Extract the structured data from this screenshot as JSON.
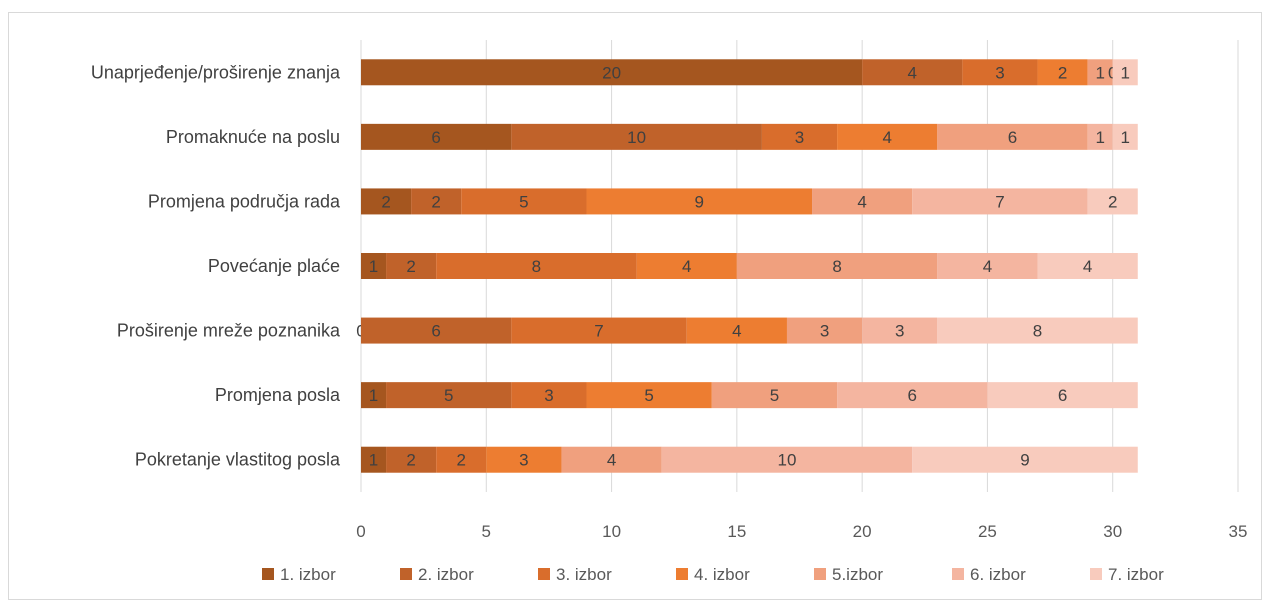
{
  "chart_data": {
    "type": "bar",
    "orientation": "horizontal",
    "stacked": true,
    "categories": [
      "Unaprjeđenje/proširenje znanja",
      "Promaknuće na poslu",
      "Promjena područja rada",
      "Povećanje plaće",
      "Proširenje mreže poznanika",
      "Promjena posla",
      "Pokretanje vlastitog posla"
    ],
    "series": [
      {
        "name": "1. izbor",
        "color": "#a5561f",
        "values": [
          20,
          6,
          2,
          1,
          0,
          1,
          1
        ]
      },
      {
        "name": "2. izbor",
        "color": "#c0622a",
        "values": [
          4,
          10,
          2,
          2,
          6,
          5,
          2
        ]
      },
      {
        "name": "3. izbor",
        "color": "#d96d2c",
        "values": [
          3,
          3,
          5,
          8,
          7,
          3,
          2
        ]
      },
      {
        "name": "4. izbor",
        "color": "#ed7d31",
        "values": [
          2,
          4,
          9,
          4,
          4,
          5,
          3
        ]
      },
      {
        "name": "5.izbor",
        "color": "#f0a07e",
        "values": [
          1,
          6,
          4,
          8,
          3,
          5,
          4
        ]
      },
      {
        "name": "6. izbor",
        "color": "#f4b5a0",
        "values": [
          0,
          1,
          7,
          4,
          3,
          6,
          10
        ]
      },
      {
        "name": "7. izbor",
        "color": "#f8cbbd",
        "values": [
          1,
          1,
          2,
          4,
          8,
          6,
          9
        ]
      }
    ],
    "xlim": [
      0,
      35
    ],
    "xticks": [
      "0",
      "5",
      "10",
      "15",
      "20",
      "25",
      "30",
      "35"
    ],
    "grid": true,
    "legend_position": "bottom",
    "title": "",
    "xlabel": "",
    "ylabel": ""
  }
}
